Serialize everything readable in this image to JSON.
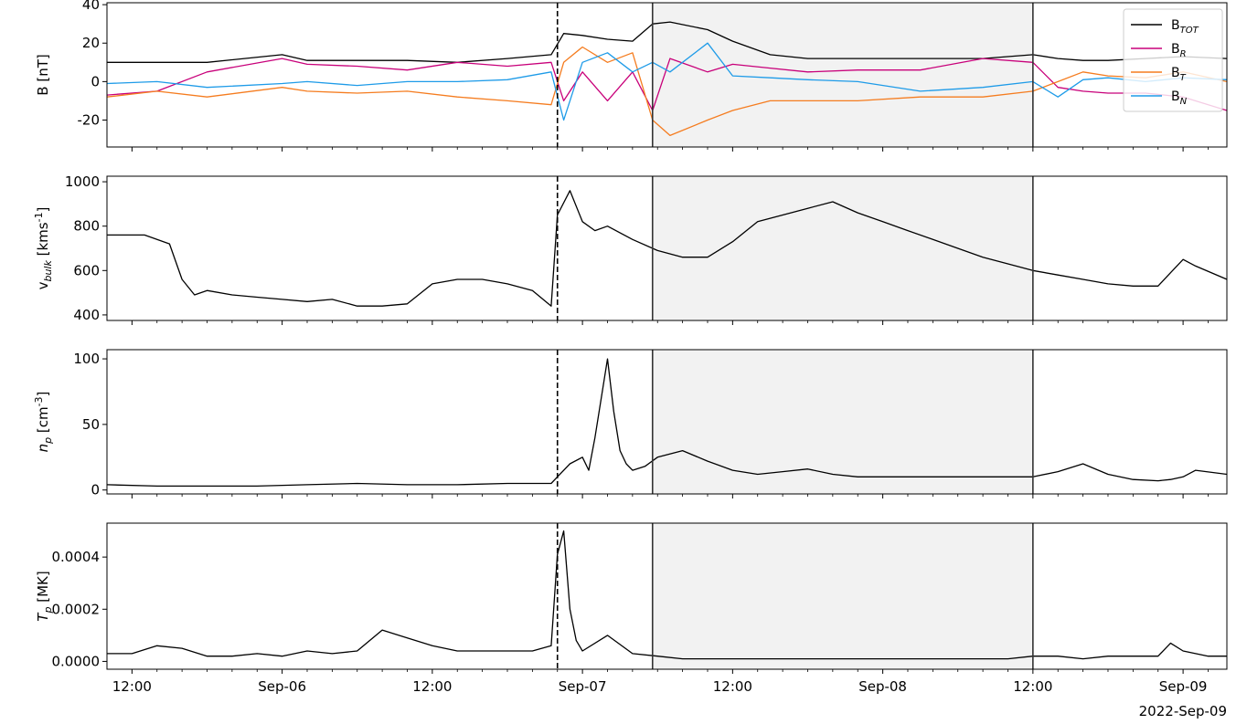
{
  "figure": {
    "date_stamp": "2022-Sep-09",
    "x_ticks": [
      "12:00",
      "Sep-06",
      "12:00",
      "Sep-07",
      "12:00",
      "Sep-08",
      "12:00",
      "Sep-09"
    ],
    "shock_marker_time": 46.0,
    "shaded_interval": [
      53.6,
      84.0
    ]
  },
  "chart_data": [
    {
      "type": "line",
      "panel": "magnetic-field",
      "ylabel": "B [nT]",
      "ylim": [
        -34,
        41
      ],
      "yticks": [
        "-20",
        "0",
        "20",
        "40"
      ],
      "ytick_values": [
        -20,
        0,
        20,
        40
      ],
      "x_unit": "hours since 2022-09-05 00:00",
      "xlim": [
        10.0,
        99.5
      ],
      "legend": {
        "placement": "top-right",
        "entries": [
          "B",
          "B",
          "B",
          "B"
        ],
        "subscripts": [
          "TOT",
          "R",
          "T",
          "N"
        ]
      },
      "series": [
        {
          "name": "BTOT",
          "color": "#000000",
          "x": [
            10,
            14,
            18,
            24,
            26,
            30,
            34,
            38,
            42,
            45.5,
            46.5,
            48,
            50,
            52,
            53.6,
            55,
            58,
            60,
            63,
            66,
            70,
            75,
            80,
            84,
            86,
            88,
            90,
            93,
            96,
            99.5
          ],
          "y": [
            10,
            10,
            10,
            14,
            11,
            11,
            11,
            10,
            12,
            14,
            25,
            24,
            22,
            21,
            30,
            31,
            27,
            21,
            14,
            12,
            12,
            12,
            12,
            14,
            12,
            11,
            11,
            12,
            13,
            12
          ]
        },
        {
          "name": "BR",
          "color": "#c8007a",
          "x": [
            10,
            14,
            18,
            24,
            26,
            30,
            34,
            38,
            42,
            45.5,
            46.5,
            48,
            50,
            52,
            53.6,
            55,
            58,
            60,
            63,
            66,
            70,
            75,
            80,
            84,
            86,
            88,
            90,
            93,
            96,
            99.5
          ],
          "y": [
            -7,
            -5,
            5,
            12,
            9,
            8,
            6,
            10,
            8,
            10,
            -10,
            5,
            -10,
            5,
            -15,
            12,
            5,
            9,
            7,
            5,
            6,
            6,
            12,
            10,
            -3,
            -5,
            -6,
            -6,
            -8,
            -15
          ]
        },
        {
          "name": "BT",
          "color": "#f57c1f",
          "x": [
            10,
            14,
            18,
            24,
            26,
            30,
            34,
            38,
            42,
            45.5,
            46.5,
            48,
            50,
            52,
            53.6,
            55,
            58,
            60,
            63,
            66,
            70,
            75,
            80,
            84,
            86,
            88,
            90,
            93,
            96,
            99.5
          ],
          "y": [
            -8,
            -5,
            -8,
            -3,
            -5,
            -6,
            -5,
            -8,
            -10,
            -12,
            10,
            18,
            10,
            15,
            -20,
            -28,
            -20,
            -15,
            -10,
            -10,
            -10,
            -8,
            -8,
            -5,
            0,
            5,
            3,
            2,
            5,
            0
          ]
        },
        {
          "name": "BN",
          "color": "#1e9be8",
          "x": [
            10,
            14,
            18,
            24,
            26,
            30,
            34,
            38,
            42,
            45.5,
            46.5,
            48,
            50,
            52,
            53.6,
            55,
            58,
            60,
            63,
            66,
            70,
            75,
            80,
            84,
            86,
            88,
            90,
            93,
            96,
            99.5
          ],
          "y": [
            -1,
            0,
            -3,
            -1,
            0,
            -2,
            0,
            0,
            1,
            5,
            -20,
            10,
            15,
            5,
            10,
            5,
            20,
            3,
            2,
            1,
            0,
            -5,
            -3,
            0,
            -8,
            1,
            2,
            0,
            2,
            1
          ]
        }
      ]
    },
    {
      "type": "line",
      "panel": "bulk-speed",
      "ylabel": "v",
      "ylabel_sub": "bulk",
      "ylabel_unit": " [kms",
      "ylabel_sup": "-1",
      "ylabel_end": "]",
      "ylim": [
        375,
        1025
      ],
      "yticks": [
        "400",
        "600",
        "800",
        "1000"
      ],
      "ytick_values": [
        400,
        600,
        800,
        1000
      ],
      "xlim": [
        10.0,
        99.5
      ],
      "series": [
        {
          "name": "vbulk",
          "color": "#000000",
          "x": [
            10,
            13,
            15,
            16,
            17,
            18,
            20,
            22,
            24,
            26,
            28,
            30,
            32,
            34,
            36,
            38,
            40,
            42,
            44,
            45.5,
            46,
            47,
            48,
            49,
            50,
            52,
            54,
            56,
            58,
            60,
            62,
            64,
            66,
            68,
            70,
            72,
            74,
            76,
            78,
            80,
            82,
            84,
            86,
            88,
            90,
            92,
            94,
            95,
            96,
            97,
            99.5
          ],
          "y": [
            760,
            760,
            720,
            560,
            490,
            510,
            490,
            480,
            470,
            460,
            470,
            440,
            440,
            450,
            540,
            560,
            560,
            540,
            510,
            440,
            850,
            960,
            820,
            780,
            800,
            740,
            690,
            660,
            660,
            730,
            820,
            850,
            880,
            910,
            860,
            820,
            780,
            740,
            700,
            660,
            630,
            600,
            580,
            560,
            540,
            530,
            530,
            590,
            650,
            620,
            560
          ]
        }
      ]
    },
    {
      "type": "line",
      "panel": "proton-density",
      "ylabel": "n",
      "ylabel_sub": "p",
      "ylabel_unit": " [cm",
      "ylabel_sup": "-3",
      "ylabel_end": "]",
      "ylim": [
        -3,
        107
      ],
      "yticks": [
        "0",
        "50",
        "100"
      ],
      "ytick_values": [
        0,
        50,
        100
      ],
      "xlim": [
        10.0,
        99.5
      ],
      "series": [
        {
          "name": "np",
          "color": "#000000",
          "x": [
            10,
            14,
            18,
            22,
            26,
            30,
            34,
            38,
            42,
            45.5,
            46,
            47,
            48,
            48.5,
            49,
            50,
            50.5,
            51,
            51.5,
            52,
            53,
            54,
            56,
            58,
            60,
            62,
            64,
            66,
            68,
            70,
            74,
            78,
            82,
            84,
            86,
            88,
            90,
            92,
            94,
            95,
            96,
            97,
            99.5
          ],
          "y": [
            4,
            3,
            3,
            3,
            4,
            5,
            4,
            4,
            5,
            5,
            10,
            20,
            25,
            15,
            40,
            100,
            60,
            30,
            20,
            15,
            18,
            25,
            30,
            22,
            15,
            12,
            14,
            16,
            12,
            10,
            10,
            10,
            10,
            10,
            14,
            20,
            12,
            8,
            7,
            8,
            10,
            15,
            12
          ]
        }
      ]
    },
    {
      "type": "line",
      "panel": "proton-temperature",
      "ylabel": "T",
      "ylabel_sub": "p",
      "ylabel_unit": " [MK]",
      "ylim": [
        -3e-05,
        0.00053
      ],
      "yticks": [
        "0.0000",
        "0.0002",
        "0.0004"
      ],
      "ytick_values": [
        0,
        0.0002,
        0.0004
      ],
      "xlim": [
        10.0,
        99.5
      ],
      "series": [
        {
          "name": "Tp",
          "color": "#000000",
          "x": [
            10,
            12,
            14,
            16,
            18,
            20,
            22,
            24,
            26,
            28,
            30,
            32,
            34,
            36,
            38,
            40,
            42,
            44,
            45.5,
            46,
            46.5,
            47,
            47.5,
            48,
            50,
            52,
            54,
            56,
            58,
            60,
            62,
            64,
            66,
            68,
            70,
            74,
            78,
            82,
            84,
            86,
            88,
            90,
            92,
            94,
            95,
            96,
            98,
            99.5
          ],
          "y": [
            3e-05,
            3e-05,
            6e-05,
            5e-05,
            2e-05,
            2e-05,
            3e-05,
            2e-05,
            4e-05,
            3e-05,
            4e-05,
            0.00012,
            9e-05,
            6e-05,
            4e-05,
            4e-05,
            4e-05,
            4e-05,
            6e-05,
            0.00041,
            0.0005,
            0.0002,
            8e-05,
            4e-05,
            0.0001,
            3e-05,
            2e-05,
            1e-05,
            1e-05,
            1e-05,
            1e-05,
            1e-05,
            1e-05,
            1e-05,
            1e-05,
            1e-05,
            1e-05,
            1e-05,
            2e-05,
            2e-05,
            1e-05,
            2e-05,
            2e-05,
            2e-05,
            7e-05,
            4e-05,
            2e-05,
            2e-05
          ]
        }
      ]
    }
  ]
}
